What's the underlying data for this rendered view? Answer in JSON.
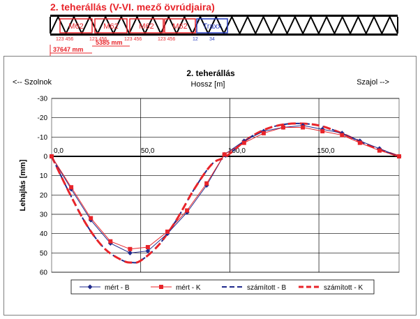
{
  "header": {
    "title": "2. teherállás (V-VI. mező övrúdjaira)",
    "loads": [
      {
        "label": "M62",
        "color": "red"
      },
      {
        "label": "M62",
        "color": "red"
      },
      {
        "label": "M62",
        "color": "red"
      },
      {
        "label": "M62",
        "color": "red"
      },
      {
        "label": "Traxx",
        "color": "blue"
      }
    ],
    "axle_groups": [
      "123 456",
      "123 456",
      "123 456",
      "123 456",
      "12",
      "34"
    ],
    "dim_5385": "5385 mm",
    "dim_37647": "37647 mm"
  },
  "chart_data": {
    "type": "line",
    "title": "2. teherállás",
    "xlabel": "Hossz [m]",
    "ylabel": "Lehajlás [mm]",
    "left_annotation": "<-- Szolnok",
    "right_annotation": "Szajol -->",
    "xlim": [
      0,
      195
    ],
    "ylim": [
      60,
      -30
    ],
    "y_inverted": true,
    "x_ticks": [
      0,
      50,
      100,
      150
    ],
    "x_tick_labels": [
      "0,0",
      "50,0",
      "100,0",
      "150,0"
    ],
    "y_ticks": [
      -30,
      -20,
      -10,
      0,
      10,
      20,
      30,
      40,
      50,
      60
    ],
    "grid": true,
    "legend_position": "bottom",
    "series": [
      {
        "name": "mért - B",
        "color": "#1f2a8c",
        "style": "line-diamond",
        "x": [
          0,
          11,
          22,
          33,
          44,
          54,
          65,
          76,
          87,
          97,
          108,
          119,
          130,
          141,
          152,
          163,
          173,
          184,
          195
        ],
        "y": [
          0,
          17,
          33,
          45,
          50,
          49,
          40,
          29,
          15,
          -1,
          -8,
          -13,
          -15,
          -16,
          -14,
          -12,
          -8,
          -4,
          0
        ]
      },
      {
        "name": "mért - K",
        "color": "#e8242a",
        "style": "line-square",
        "x": [
          0,
          11,
          22,
          33,
          44,
          54,
          65,
          76,
          87,
          97,
          108,
          119,
          130,
          141,
          152,
          163,
          173,
          184,
          195
        ],
        "y": [
          0,
          16,
          32,
          44,
          48,
          47,
          39,
          28,
          14,
          -1,
          -7,
          -12,
          -15,
          -15,
          -13,
          -11,
          -7,
          -3,
          0
        ]
      },
      {
        "name": "számított - B",
        "color": "#1f2a8c",
        "style": "dashed",
        "x": [
          0,
          10,
          20,
          30,
          40,
          45,
          50,
          60,
          70,
          80,
          90,
          98,
          110,
          120,
          130,
          140,
          150,
          160,
          170,
          180,
          195
        ],
        "y": [
          0,
          19,
          36,
          48,
          54,
          55,
          54,
          46,
          33,
          17,
          4,
          0,
          -9,
          -14,
          -16.5,
          -17,
          -16,
          -13,
          -9,
          -5,
          0
        ]
      },
      {
        "name": "számított - K",
        "color": "#e8242a",
        "style": "dashed-thick",
        "x": [
          0,
          10,
          20,
          30,
          40,
          45,
          50,
          60,
          70,
          80,
          90,
          98,
          110,
          120,
          130,
          140,
          150,
          160,
          170,
          180,
          195
        ],
        "y": [
          0,
          19,
          36,
          48,
          54,
          55,
          54,
          46,
          33,
          17,
          4,
          0,
          -9,
          -14,
          -16.5,
          -17,
          -16,
          -13,
          -9,
          -5,
          0
        ]
      }
    ]
  }
}
